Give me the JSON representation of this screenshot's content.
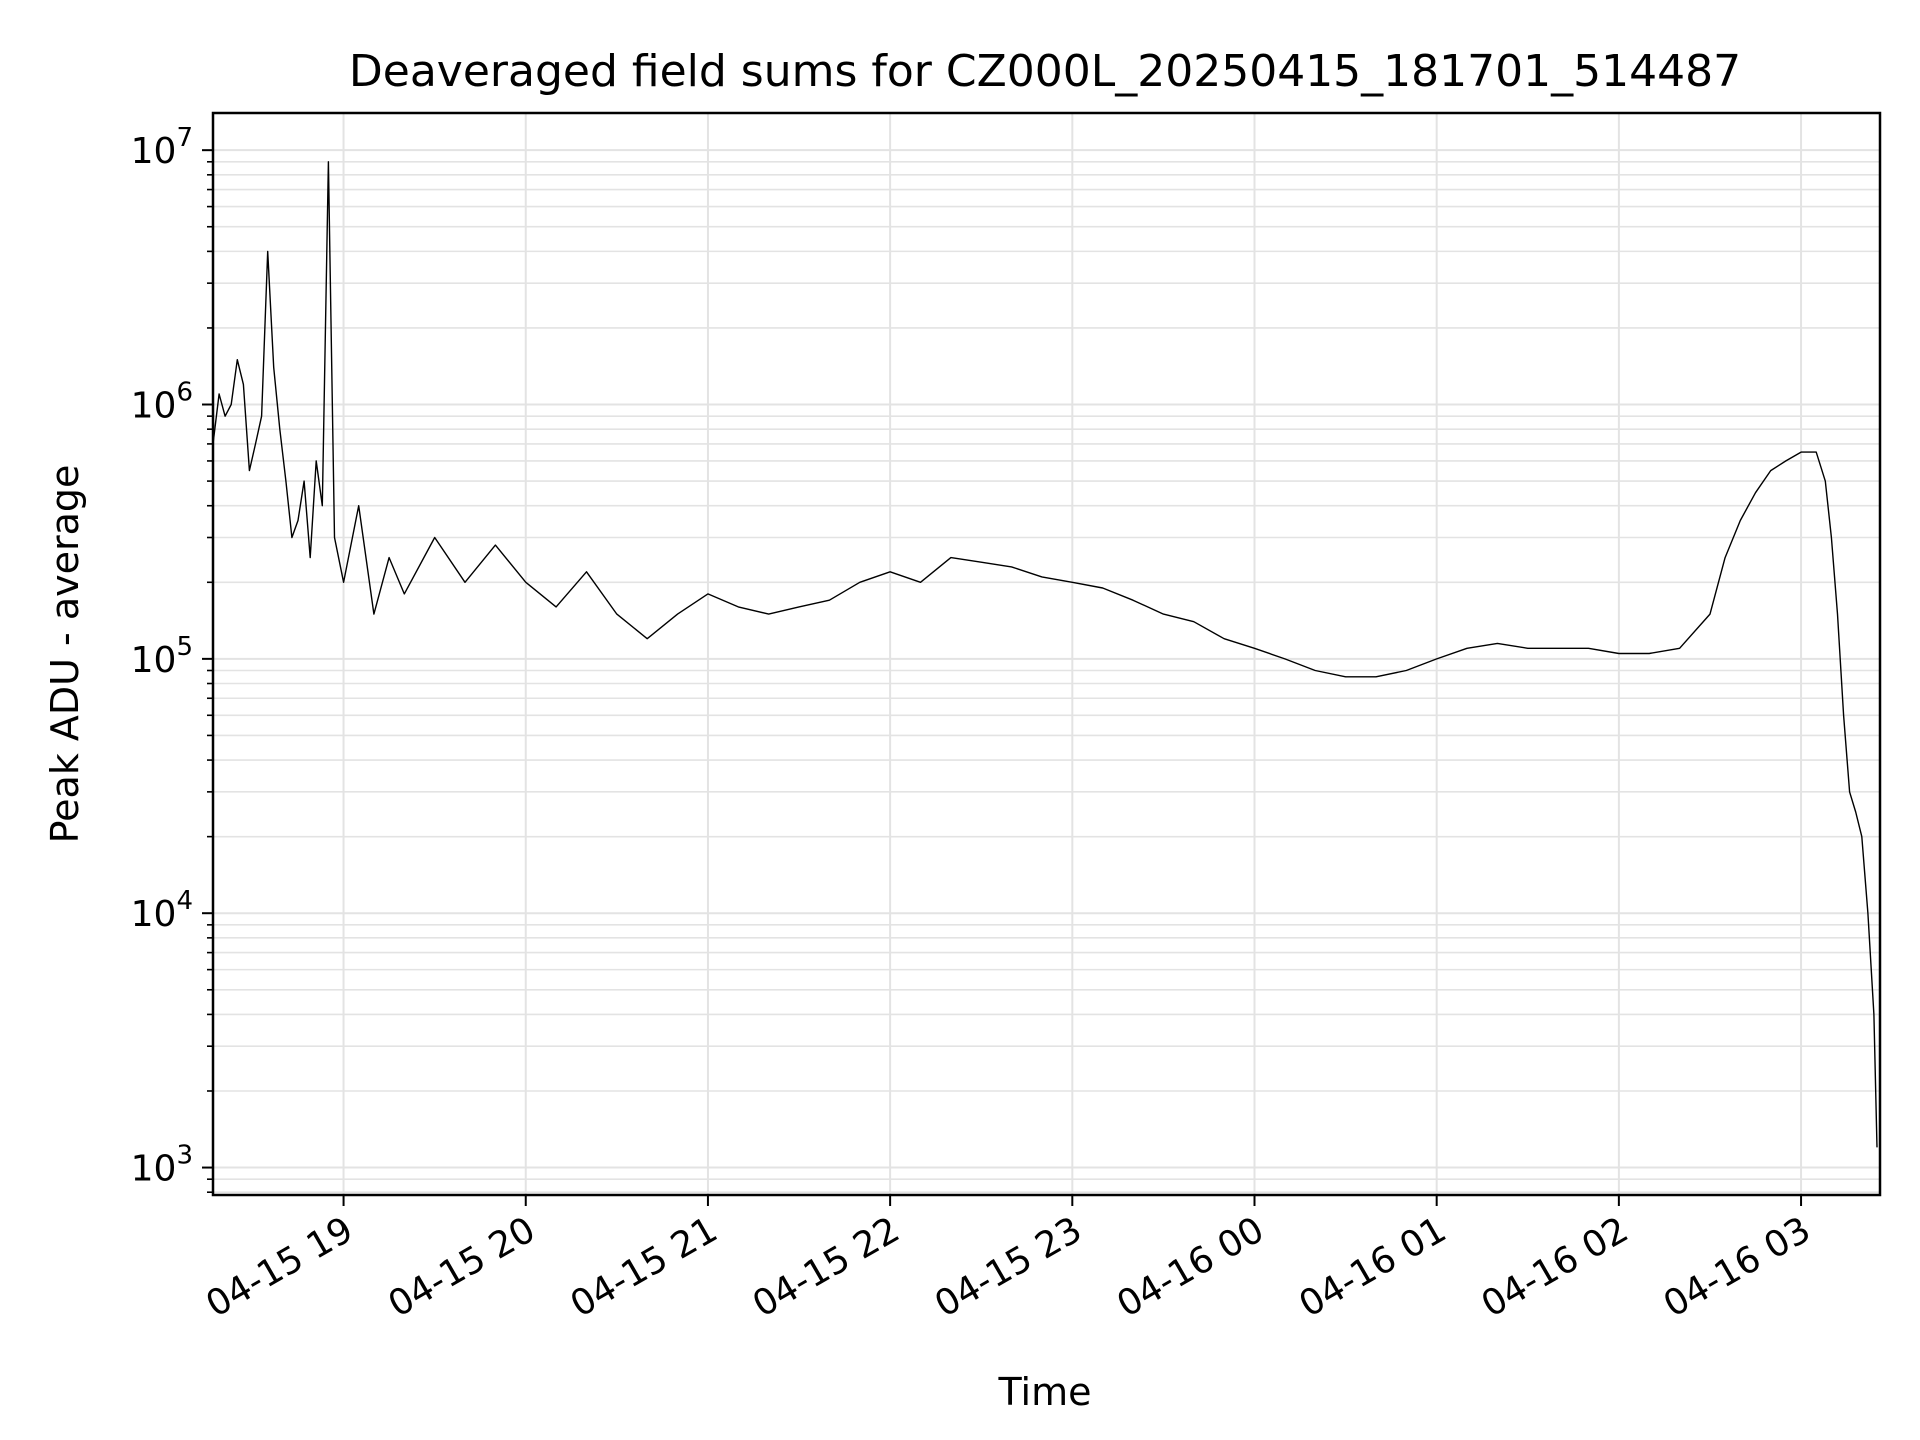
{
  "chart_data": {
    "type": "line",
    "title": "Deaveraged field sums for CZ000L_20250415_181701_514487",
    "xlabel": "Time",
    "ylabel": "Peak ADU - average",
    "yscale": "log",
    "ylim": [
      780,
      14000000
    ],
    "xlim": [
      "2025-04-15 18:17",
      "2025-04-16 03:26"
    ],
    "grid": true,
    "line_color": "#000000",
    "grid_color": "#e3e3e3",
    "x_ticks": [
      {
        "label": "04-15 19",
        "value": "2025-04-15 19:00"
      },
      {
        "label": "04-15 20",
        "value": "2025-04-15 20:00"
      },
      {
        "label": "04-15 21",
        "value": "2025-04-15 21:00"
      },
      {
        "label": "04-15 22",
        "value": "2025-04-15 22:00"
      },
      {
        "label": "04-15 23",
        "value": "2025-04-15 23:00"
      },
      {
        "label": "04-16 00",
        "value": "2025-04-16 00:00"
      },
      {
        "label": "04-16 01",
        "value": "2025-04-16 01:00"
      },
      {
        "label": "04-16 02",
        "value": "2025-04-16 02:00"
      },
      {
        "label": "04-16 03",
        "value": "2025-04-16 03:00"
      }
    ],
    "y_ticks": [
      {
        "base": "10",
        "exp": "3",
        "value": 1000
      },
      {
        "base": "10",
        "exp": "4",
        "value": 10000
      },
      {
        "base": "10",
        "exp": "5",
        "value": 100000
      },
      {
        "base": "10",
        "exp": "6",
        "value": 1000000
      },
      {
        "base": "10",
        "exp": "7",
        "value": 10000000
      }
    ],
    "series": [
      {
        "points": [
          [
            "2025-04-15 18:17",
            700000
          ],
          [
            "2025-04-15 18:19",
            1100000
          ],
          [
            "2025-04-15 18:21",
            900000
          ],
          [
            "2025-04-15 18:23",
            1000000
          ],
          [
            "2025-04-15 18:25",
            1500000
          ],
          [
            "2025-04-15 18:27",
            1200000
          ],
          [
            "2025-04-15 18:29",
            550000
          ],
          [
            "2025-04-15 18:31",
            700000
          ],
          [
            "2025-04-15 18:33",
            900000
          ],
          [
            "2025-04-15 18:35",
            4000000
          ],
          [
            "2025-04-15 18:37",
            1400000
          ],
          [
            "2025-04-15 18:39",
            800000
          ],
          [
            "2025-04-15 18:41",
            500000
          ],
          [
            "2025-04-15 18:43",
            300000
          ],
          [
            "2025-04-15 18:45",
            350000
          ],
          [
            "2025-04-15 18:47",
            500000
          ],
          [
            "2025-04-15 18:49",
            250000
          ],
          [
            "2025-04-15 18:51",
            600000
          ],
          [
            "2025-04-15 18:53",
            400000
          ],
          [
            "2025-04-15 18:55",
            9000000
          ],
          [
            "2025-04-15 18:57",
            300000
          ],
          [
            "2025-04-15 19:00",
            200000
          ],
          [
            "2025-04-15 19:05",
            400000
          ],
          [
            "2025-04-15 19:10",
            150000
          ],
          [
            "2025-04-15 19:15",
            250000
          ],
          [
            "2025-04-15 19:20",
            180000
          ],
          [
            "2025-04-15 19:30",
            300000
          ],
          [
            "2025-04-15 19:40",
            200000
          ],
          [
            "2025-04-15 19:50",
            280000
          ],
          [
            "2025-04-15 20:00",
            200000
          ],
          [
            "2025-04-15 20:10",
            160000
          ],
          [
            "2025-04-15 20:20",
            220000
          ],
          [
            "2025-04-15 20:30",
            150000
          ],
          [
            "2025-04-15 20:40",
            120000
          ],
          [
            "2025-04-15 20:50",
            150000
          ],
          [
            "2025-04-15 21:00",
            180000
          ],
          [
            "2025-04-15 21:10",
            160000
          ],
          [
            "2025-04-15 21:20",
            150000
          ],
          [
            "2025-04-15 21:30",
            160000
          ],
          [
            "2025-04-15 21:40",
            170000
          ],
          [
            "2025-04-15 21:50",
            200000
          ],
          [
            "2025-04-15 22:00",
            220000
          ],
          [
            "2025-04-15 22:10",
            200000
          ],
          [
            "2025-04-15 22:20",
            250000
          ],
          [
            "2025-04-15 22:30",
            240000
          ],
          [
            "2025-04-15 22:40",
            230000
          ],
          [
            "2025-04-15 22:50",
            210000
          ],
          [
            "2025-04-15 23:00",
            200000
          ],
          [
            "2025-04-15 23:10",
            190000
          ],
          [
            "2025-04-15 23:20",
            170000
          ],
          [
            "2025-04-15 23:30",
            150000
          ],
          [
            "2025-04-15 23:40",
            140000
          ],
          [
            "2025-04-15 23:50",
            120000
          ],
          [
            "2025-04-16 00:00",
            110000
          ],
          [
            "2025-04-16 00:10",
            100000
          ],
          [
            "2025-04-16 00:20",
            90000
          ],
          [
            "2025-04-16 00:30",
            85000
          ],
          [
            "2025-04-16 00:40",
            85000
          ],
          [
            "2025-04-16 00:50",
            90000
          ],
          [
            "2025-04-16 01:00",
            100000
          ],
          [
            "2025-04-16 01:10",
            110000
          ],
          [
            "2025-04-16 01:20",
            115000
          ],
          [
            "2025-04-16 01:30",
            110000
          ],
          [
            "2025-04-16 01:40",
            110000
          ],
          [
            "2025-04-16 01:50",
            110000
          ],
          [
            "2025-04-16 02:00",
            105000
          ],
          [
            "2025-04-16 02:10",
            105000
          ],
          [
            "2025-04-16 02:20",
            110000
          ],
          [
            "2025-04-16 02:30",
            150000
          ],
          [
            "2025-04-16 02:35",
            250000
          ],
          [
            "2025-04-16 02:40",
            350000
          ],
          [
            "2025-04-16 02:45",
            450000
          ],
          [
            "2025-04-16 02:50",
            550000
          ],
          [
            "2025-04-16 02:55",
            600000
          ],
          [
            "2025-04-16 03:00",
            650000
          ],
          [
            "2025-04-16 03:05",
            650000
          ],
          [
            "2025-04-16 03:08",
            500000
          ],
          [
            "2025-04-16 03:10",
            300000
          ],
          [
            "2025-04-16 03:12",
            150000
          ],
          [
            "2025-04-16 03:14",
            60000
          ],
          [
            "2025-04-16 03:16",
            30000
          ],
          [
            "2025-04-16 03:18",
            25000
          ],
          [
            "2025-04-16 03:20",
            20000
          ],
          [
            "2025-04-16 03:22",
            10000
          ],
          [
            "2025-04-16 03:24",
            4000
          ],
          [
            "2025-04-16 03:25",
            1200
          ]
        ]
      }
    ]
  }
}
